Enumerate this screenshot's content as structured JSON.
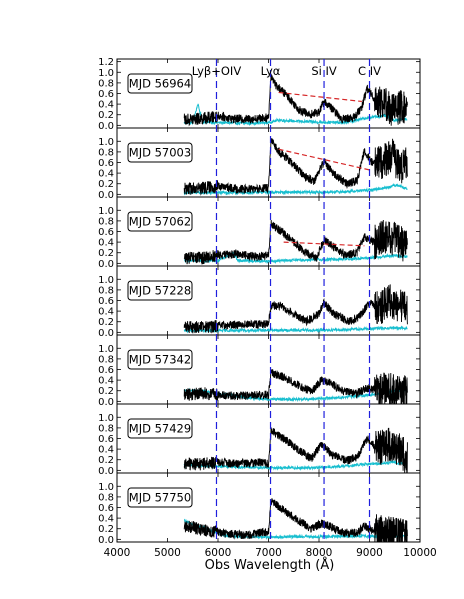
{
  "chart_data": {
    "type": "line",
    "xlabel": "Obs Wavelength (Å)",
    "xlim": [
      4000,
      10000
    ],
    "x_ticks": [
      "4000",
      "5000",
      "6000",
      "7000",
      "8000",
      "9000",
      "10000"
    ],
    "ylim": [
      -0.05,
      1.25
    ],
    "y_ticks": [
      "0.0",
      "0.2",
      "0.4",
      "0.6",
      "0.8",
      "1.0",
      "1.2"
    ],
    "emission_lines": [
      {
        "label": "Lyβ+OIV",
        "x": 5970
      },
      {
        "label": "Lyα",
        "x": 7040
      },
      {
        "label": "Si IV",
        "x": 8100
      },
      {
        "label": "C IV",
        "x": 9000
      }
    ],
    "panels": [
      {
        "label": "MJD 56964",
        "flux": [
          [
            5330,
            0.1
          ],
          [
            5600,
            0.12
          ],
          [
            5900,
            0.15
          ],
          [
            6000,
            0.18
          ],
          [
            6300,
            0.12
          ],
          [
            6700,
            0.12
          ],
          [
            7000,
            0.15
          ],
          [
            7050,
            0.95
          ],
          [
            7150,
            0.75
          ],
          [
            7350,
            0.58
          ],
          [
            7600,
            0.3
          ],
          [
            7800,
            0.2
          ],
          [
            8000,
            0.25
          ],
          [
            8100,
            0.45
          ],
          [
            8250,
            0.32
          ],
          [
            8450,
            0.12
          ],
          [
            8700,
            0.15
          ],
          [
            8850,
            0.35
          ],
          [
            8950,
            0.7
          ],
          [
            9100,
            0.5
          ],
          [
            9300,
            0.42
          ],
          [
            9450,
            0.28
          ],
          [
            9600,
            0.35
          ],
          [
            9750,
            0.3
          ]
        ],
        "error": [
          [
            5330,
            0.05
          ],
          [
            5500,
            0.05
          ],
          [
            5600,
            0.4
          ],
          [
            5700,
            0.06
          ],
          [
            6500,
            0.04
          ],
          [
            7000,
            0.05
          ],
          [
            7200,
            0.1
          ],
          [
            7500,
            0.08
          ],
          [
            8000,
            0.06
          ],
          [
            8500,
            0.05
          ],
          [
            9000,
            0.15
          ],
          [
            9300,
            0.18
          ],
          [
            9500,
            0.1
          ],
          [
            9750,
            0.12
          ]
        ],
        "continuum": [
          [
            7200,
            0.62
          ],
          [
            8850,
            0.45
          ]
        ]
      },
      {
        "label": "MJD 57003",
        "flux": [
          [
            5330,
            0.1
          ],
          [
            5700,
            0.12
          ],
          [
            6000,
            0.15
          ],
          [
            6400,
            0.1
          ],
          [
            6800,
            0.1
          ],
          [
            7000,
            0.12
          ],
          [
            7050,
            1.0
          ],
          [
            7200,
            0.82
          ],
          [
            7450,
            0.6
          ],
          [
            7700,
            0.35
          ],
          [
            7900,
            0.25
          ],
          [
            8100,
            0.62
          ],
          [
            8300,
            0.38
          ],
          [
            8550,
            0.2
          ],
          [
            8750,
            0.25
          ],
          [
            8900,
            0.82
          ],
          [
            9050,
            0.6
          ],
          [
            9250,
            0.6
          ],
          [
            9450,
            0.75
          ],
          [
            9600,
            0.5
          ],
          [
            9750,
            0.6
          ]
        ],
        "error": [
          [
            5330,
            0.03
          ],
          [
            6500,
            0.03
          ],
          [
            7000,
            0.04
          ],
          [
            7500,
            0.04
          ],
          [
            8000,
            0.04
          ],
          [
            8500,
            0.05
          ],
          [
            9000,
            0.08
          ],
          [
            9300,
            0.12
          ],
          [
            9550,
            0.18
          ],
          [
            9750,
            0.1
          ]
        ],
        "continuum": [
          [
            7200,
            0.85
          ],
          [
            9000,
            0.46
          ]
        ]
      },
      {
        "label": "MJD 57062",
        "flux": [
          [
            5330,
            0.1
          ],
          [
            5700,
            0.1
          ],
          [
            6000,
            0.15
          ],
          [
            6400,
            0.18
          ],
          [
            6800,
            0.12
          ],
          [
            7000,
            0.15
          ],
          [
            7050,
            0.75
          ],
          [
            7250,
            0.6
          ],
          [
            7500,
            0.4
          ],
          [
            7700,
            0.22
          ],
          [
            7950,
            0.1
          ],
          [
            8100,
            0.45
          ],
          [
            8300,
            0.3
          ],
          [
            8550,
            0.15
          ],
          [
            8750,
            0.2
          ],
          [
            8900,
            0.5
          ],
          [
            9100,
            0.4
          ],
          [
            9300,
            0.5
          ],
          [
            9550,
            0.45
          ],
          [
            9750,
            0.3
          ]
        ],
        "error": [
          [
            5330,
            0.05
          ],
          [
            6000,
            0.05
          ],
          [
            6300,
            0.2
          ],
          [
            6400,
            0.05
          ],
          [
            7000,
            0.04
          ],
          [
            7500,
            0.06
          ],
          [
            8000,
            0.07
          ],
          [
            8500,
            0.08
          ],
          [
            9000,
            0.1
          ],
          [
            9500,
            0.15
          ],
          [
            9750,
            0.12
          ]
        ],
        "continuum": [
          [
            7300,
            0.4
          ],
          [
            8900,
            0.33
          ]
        ]
      },
      {
        "label": "MJD 57228",
        "flux": [
          [
            5330,
            0.1
          ],
          [
            5700,
            0.1
          ],
          [
            6000,
            0.12
          ],
          [
            6400,
            0.15
          ],
          [
            6800,
            0.15
          ],
          [
            7000,
            0.15
          ],
          [
            7050,
            0.5
          ],
          [
            7250,
            0.5
          ],
          [
            7500,
            0.35
          ],
          [
            7750,
            0.2
          ],
          [
            8000,
            0.35
          ],
          [
            8100,
            0.55
          ],
          [
            8300,
            0.35
          ],
          [
            8600,
            0.2
          ],
          [
            8800,
            0.3
          ],
          [
            9000,
            0.55
          ],
          [
            9200,
            0.45
          ],
          [
            9400,
            0.6
          ],
          [
            9600,
            0.5
          ],
          [
            9750,
            0.45
          ]
        ],
        "error": [
          [
            5330,
            0.03
          ],
          [
            7000,
            0.04
          ],
          [
            8000,
            0.04
          ],
          [
            8500,
            0.05
          ],
          [
            9000,
            0.07
          ],
          [
            9500,
            0.08
          ],
          [
            9750,
            0.08
          ]
        ],
        "continuum": []
      },
      {
        "label": "MJD 57342",
        "flux": [
          [
            5330,
            0.12
          ],
          [
            5700,
            0.15
          ],
          [
            6000,
            0.12
          ],
          [
            6400,
            0.1
          ],
          [
            6800,
            0.12
          ],
          [
            7000,
            0.12
          ],
          [
            7050,
            0.55
          ],
          [
            7300,
            0.45
          ],
          [
            7600,
            0.3
          ],
          [
            7850,
            0.18
          ],
          [
            8050,
            0.4
          ],
          [
            8200,
            0.35
          ],
          [
            8500,
            0.18
          ],
          [
            8750,
            0.15
          ],
          [
            8950,
            0.25
          ],
          [
            9150,
            0.2
          ],
          [
            9400,
            0.22
          ],
          [
            9600,
            0.2
          ],
          [
            9750,
            0.15
          ]
        ],
        "error": [
          [
            5330,
            0.2
          ],
          [
            5600,
            0.2
          ],
          [
            6000,
            0.15
          ],
          [
            6500,
            0.08
          ],
          [
            7000,
            0.04
          ],
          [
            7500,
            0.04
          ],
          [
            8000,
            0.05
          ],
          [
            8500,
            0.08
          ],
          [
            9000,
            0.12
          ],
          [
            9500,
            0.2
          ],
          [
            9750,
            0.22
          ]
        ],
        "continuum": []
      },
      {
        "label": "MJD 57429",
        "flux": [
          [
            5330,
            0.12
          ],
          [
            5700,
            0.12
          ],
          [
            6000,
            0.15
          ],
          [
            6400,
            0.12
          ],
          [
            6800,
            0.15
          ],
          [
            7000,
            0.12
          ],
          [
            7050,
            0.75
          ],
          [
            7300,
            0.6
          ],
          [
            7600,
            0.38
          ],
          [
            7850,
            0.22
          ],
          [
            8050,
            0.5
          ],
          [
            8250,
            0.3
          ],
          [
            8550,
            0.18
          ],
          [
            8750,
            0.25
          ],
          [
            8950,
            0.6
          ],
          [
            9150,
            0.4
          ],
          [
            9400,
            0.5
          ],
          [
            9600,
            0.4
          ],
          [
            9750,
            0.2
          ]
        ],
        "error": [
          [
            5330,
            0.1
          ],
          [
            6000,
            0.08
          ],
          [
            6500,
            0.06
          ],
          [
            7000,
            0.05
          ],
          [
            7500,
            0.05
          ],
          [
            8000,
            0.05
          ],
          [
            8500,
            0.08
          ],
          [
            9000,
            0.12
          ],
          [
            9500,
            0.15
          ],
          [
            9750,
            0.12
          ]
        ],
        "continuum": []
      },
      {
        "label": "MJD 57750",
        "flux": [
          [
            5330,
            0.25
          ],
          [
            5600,
            0.2
          ],
          [
            5900,
            0.15
          ],
          [
            6200,
            0.1
          ],
          [
            6600,
            0.08
          ],
          [
            7000,
            0.15
          ],
          [
            7050,
            0.72
          ],
          [
            7300,
            0.55
          ],
          [
            7600,
            0.35
          ],
          [
            7850,
            0.2
          ],
          [
            8050,
            0.3
          ],
          [
            8200,
            0.25
          ],
          [
            8500,
            0.12
          ],
          [
            8750,
            0.12
          ],
          [
            8900,
            0.25
          ],
          [
            9100,
            0.15
          ],
          [
            9400,
            0.12
          ],
          [
            9750,
            0.08
          ]
        ],
        "error": [
          [
            5330,
            0.35
          ],
          [
            5600,
            0.25
          ],
          [
            5900,
            0.15
          ],
          [
            6200,
            0.06
          ],
          [
            7000,
            0.04
          ],
          [
            7500,
            0.05
          ],
          [
            8000,
            0.05
          ],
          [
            8500,
            0.06
          ],
          [
            9000,
            0.06
          ],
          [
            9500,
            0.06
          ],
          [
            9750,
            0.06
          ]
        ],
        "continuum": []
      }
    ]
  }
}
